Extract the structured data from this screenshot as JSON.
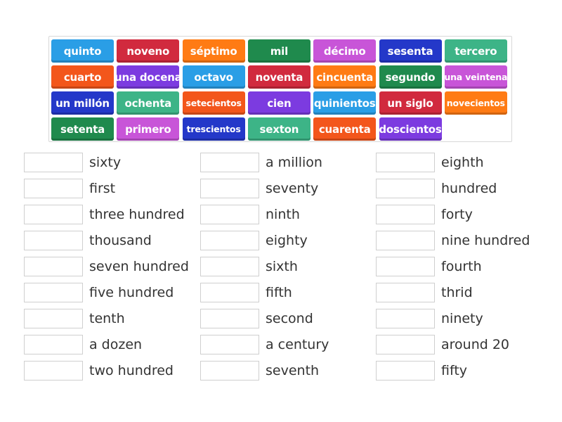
{
  "colors": {
    "blue": "#2a9ee6",
    "red": "#d12a3e",
    "orange": "#ff7b14",
    "green": "#1f8a4d",
    "pink": "#c855d8",
    "navy": "#2438c9",
    "teal": "#3db487",
    "orangered": "#f3561b",
    "purple": "#7c3be0"
  },
  "tiles": [
    {
      "label": "quinto",
      "color": "blue"
    },
    {
      "label": "noveno",
      "color": "red"
    },
    {
      "label": "séptimo",
      "color": "orange"
    },
    {
      "label": "mil",
      "color": "green"
    },
    {
      "label": "décimo",
      "color": "pink"
    },
    {
      "label": "sesenta",
      "color": "navy"
    },
    {
      "label": "tercero",
      "color": "teal"
    },
    {
      "label": "cuarto",
      "color": "orangered"
    },
    {
      "label": "una docena",
      "color": "purple"
    },
    {
      "label": "octavo",
      "color": "blue"
    },
    {
      "label": "noventa",
      "color": "red"
    },
    {
      "label": "cincuenta",
      "color": "orange"
    },
    {
      "label": "segundo",
      "color": "green"
    },
    {
      "label": "una veintena",
      "color": "pink"
    },
    {
      "label": "un millón",
      "color": "navy"
    },
    {
      "label": "ochenta",
      "color": "teal"
    },
    {
      "label": "setecientos",
      "color": "orangered"
    },
    {
      "label": "cien",
      "color": "purple"
    },
    {
      "label": "quinientos",
      "color": "blue"
    },
    {
      "label": "un siglo",
      "color": "red"
    },
    {
      "label": "novecientos",
      "color": "orange"
    },
    {
      "label": "setenta",
      "color": "green"
    },
    {
      "label": "primero",
      "color": "pink"
    },
    {
      "label": "trescientos",
      "color": "navy"
    },
    {
      "label": "sexton",
      "color": "teal"
    },
    {
      "label": "cuarenta",
      "color": "orangered"
    },
    {
      "label": "doscientos",
      "color": "purple"
    }
  ],
  "answers": [
    [
      "sixty",
      "first",
      "three hundred",
      "thousand",
      "seven hundred",
      "five hundred",
      "tenth",
      "a dozen",
      "two hundred"
    ],
    [
      "a million",
      "seventy",
      "ninth",
      "eighty",
      "sixth",
      "fifth",
      "second",
      "a century",
      "seventh"
    ],
    [
      "eighth",
      "hundred",
      "forty",
      "nine hundred",
      "fourth",
      "thrid",
      "ninety",
      "around 20",
      "fifty"
    ]
  ]
}
